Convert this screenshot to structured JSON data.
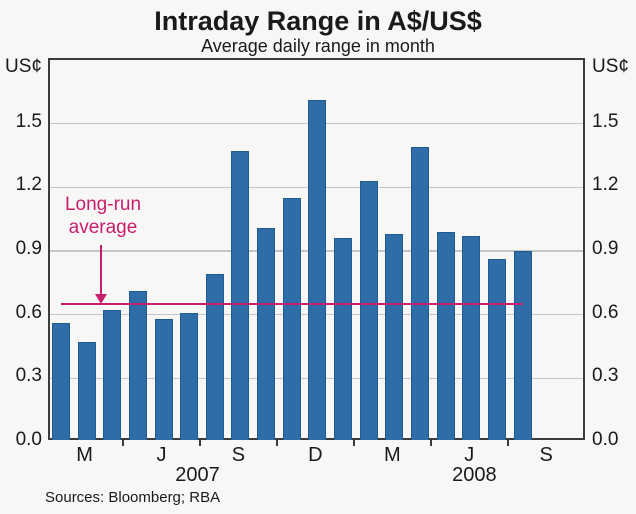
{
  "title": "Intraday Range in A$/US$",
  "subtitle": "Average daily range in month",
  "unit_left": "US¢",
  "unit_right": "US¢",
  "annotation": {
    "line1": "Long-run",
    "line2": "average"
  },
  "sources": "Sources: Bloomberg; RBA",
  "colors": {
    "bar": "#2e6da8",
    "bar_edge": "#215a8c",
    "average_line": "#c81e6e",
    "gridline": "#c6c6c6",
    "axis_box": "#3c3c3c",
    "background": "#f7f7f6",
    "text": "#1a1a1a"
  },
  "chart_data": {
    "type": "bar",
    "title": "Intraday Range in A$/US$",
    "subtitle": "Average daily range in month",
    "ylabel_left": "US¢",
    "ylabel_right": "US¢",
    "categories": [
      "Feb 2007",
      "Mar 2007",
      "Apr 2007",
      "May 2007",
      "Jun 2007",
      "Jul 2007",
      "Aug 2007",
      "Sep 2007",
      "Oct 2007",
      "Nov 2007",
      "Dec 2007",
      "Jan 2008",
      "Feb 2008",
      "Mar 2008",
      "Apr 2008",
      "May 2008",
      "Jun 2008",
      "Jul 2008",
      "Aug 2008"
    ],
    "values": [
      0.56,
      0.47,
      0.62,
      0.71,
      0.58,
      0.61,
      0.79,
      1.37,
      1.01,
      1.15,
      1.61,
      0.96,
      1.23,
      0.98,
      1.39,
      0.99,
      0.97,
      0.86,
      0.9
    ],
    "long_run_average": 0.65,
    "average_line_span_categories": [
      "Feb 2007",
      "Aug 2008"
    ],
    "ylim": [
      0,
      1.8
    ],
    "yticks": [
      0.0,
      0.3,
      0.6,
      0.9,
      1.2,
      1.5
    ],
    "ytick_format": "one_decimal",
    "grid": "horizontal",
    "legend": "none",
    "xtick_labels": [
      {
        "label": "M",
        "month_index": 1
      },
      {
        "label": "J",
        "month_index": 4
      },
      {
        "label": "S",
        "month_index": 7
      },
      {
        "label": "D",
        "month_index": 10
      },
      {
        "label": "M",
        "month_index": 13
      },
      {
        "label": "J",
        "month_index": 16
      },
      {
        "label": "S",
        "month_index": 19
      }
    ],
    "year_labels": [
      {
        "label": "2007",
        "month_index": 5.4
      },
      {
        "label": "2008",
        "month_index": 16.2
      }
    ],
    "axis_tick_after_month_index": [
      2,
      5,
      8,
      11,
      14,
      17
    ]
  }
}
